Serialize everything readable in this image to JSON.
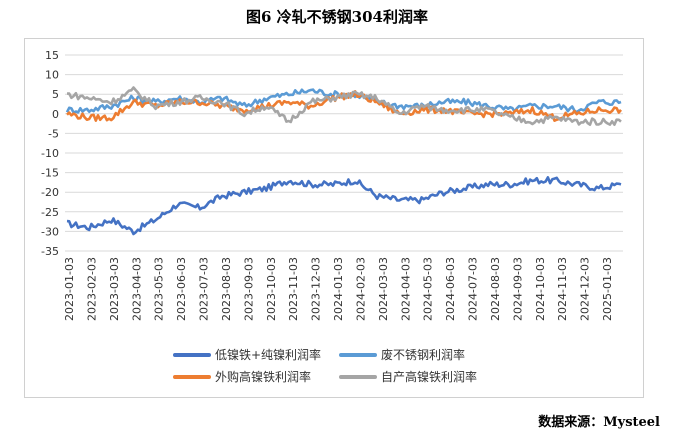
{
  "title": "图6 冷轧不锈钢304利润率",
  "source": "数据来源：Mysteel",
  "chart_data": {
    "type": "line",
    "title": "图6 冷轧不锈钢304利润率",
    "xlabel": "",
    "ylabel": "",
    "ylim": [
      -35,
      15
    ],
    "yticks": [
      15,
      10,
      5,
      0,
      -5,
      -10,
      -15,
      -20,
      -25,
      -30,
      -35
    ],
    "grid": true,
    "legend_position": "bottom",
    "x_tick_labels": [
      "2023-01-03",
      "2023-02-03",
      "2023-03-03",
      "2023-04-03",
      "2023-05-03",
      "2023-06-03",
      "2023-07-03",
      "2023-08-03",
      "2023-09-03",
      "2023-10-03",
      "2023-11-03",
      "2023-12-03",
      "2024-01-03",
      "2024-02-03",
      "2024-03-03",
      "2024-04-03",
      "2024-05-03",
      "2024-06-03",
      "2024-07-03",
      "2024-08-03",
      "2024-09-03",
      "2024-10-03",
      "2024-11-03",
      "2024-12-03",
      "2025-01-03"
    ],
    "x": [
      "2023-01",
      "2023-02",
      "2023-03",
      "2023-04",
      "2023-05",
      "2023-06",
      "2023-07",
      "2023-08",
      "2023-09",
      "2023-10",
      "2023-11",
      "2023-12",
      "2024-01",
      "2024-02",
      "2024-03",
      "2024-04",
      "2024-05",
      "2024-06",
      "2024-07",
      "2024-08",
      "2024-09",
      "2024-10",
      "2024-11",
      "2024-12",
      "2025-01",
      "2025-02"
    ],
    "series": [
      {
        "name": "低镍铁+纯镍利润率",
        "color": "#4472c4",
        "values": [
          -28,
          -29,
          -27,
          -30,
          -27,
          -23,
          -24,
          -21,
          -20,
          -19,
          -17,
          -18,
          -18,
          -17,
          -21,
          -22,
          -22,
          -20,
          -19,
          -18,
          -18,
          -17,
          -17,
          -18,
          -19,
          -18
        ]
      },
      {
        "name": "废不锈钢利润率",
        "color": "#5b9bd5",
        "values": [
          1,
          1,
          2,
          4,
          3,
          4,
          3,
          4,
          2,
          4,
          5,
          6,
          5,
          5,
          3,
          2,
          2,
          3,
          3,
          2,
          1,
          2,
          2,
          1,
          3,
          3
        ]
      },
      {
        "name": "外购高镍铁利润率",
        "color": "#ed7d31",
        "values": [
          0,
          -1,
          -1,
          3,
          2,
          3,
          3,
          2,
          1,
          2,
          3,
          2,
          4,
          5,
          3,
          0,
          1,
          1,
          0,
          0,
          0,
          1,
          -1,
          0,
          1,
          1
        ]
      },
      {
        "name": "自产高镍铁利润率",
        "color": "#a5a5a5",
        "values": [
          5,
          4,
          3,
          6,
          2,
          3,
          4,
          3,
          0,
          2,
          -2,
          3,
          4,
          5,
          4,
          0,
          2,
          1,
          1,
          1,
          -1,
          -2,
          -1,
          -2,
          -2,
          -2
        ]
      }
    ]
  }
}
